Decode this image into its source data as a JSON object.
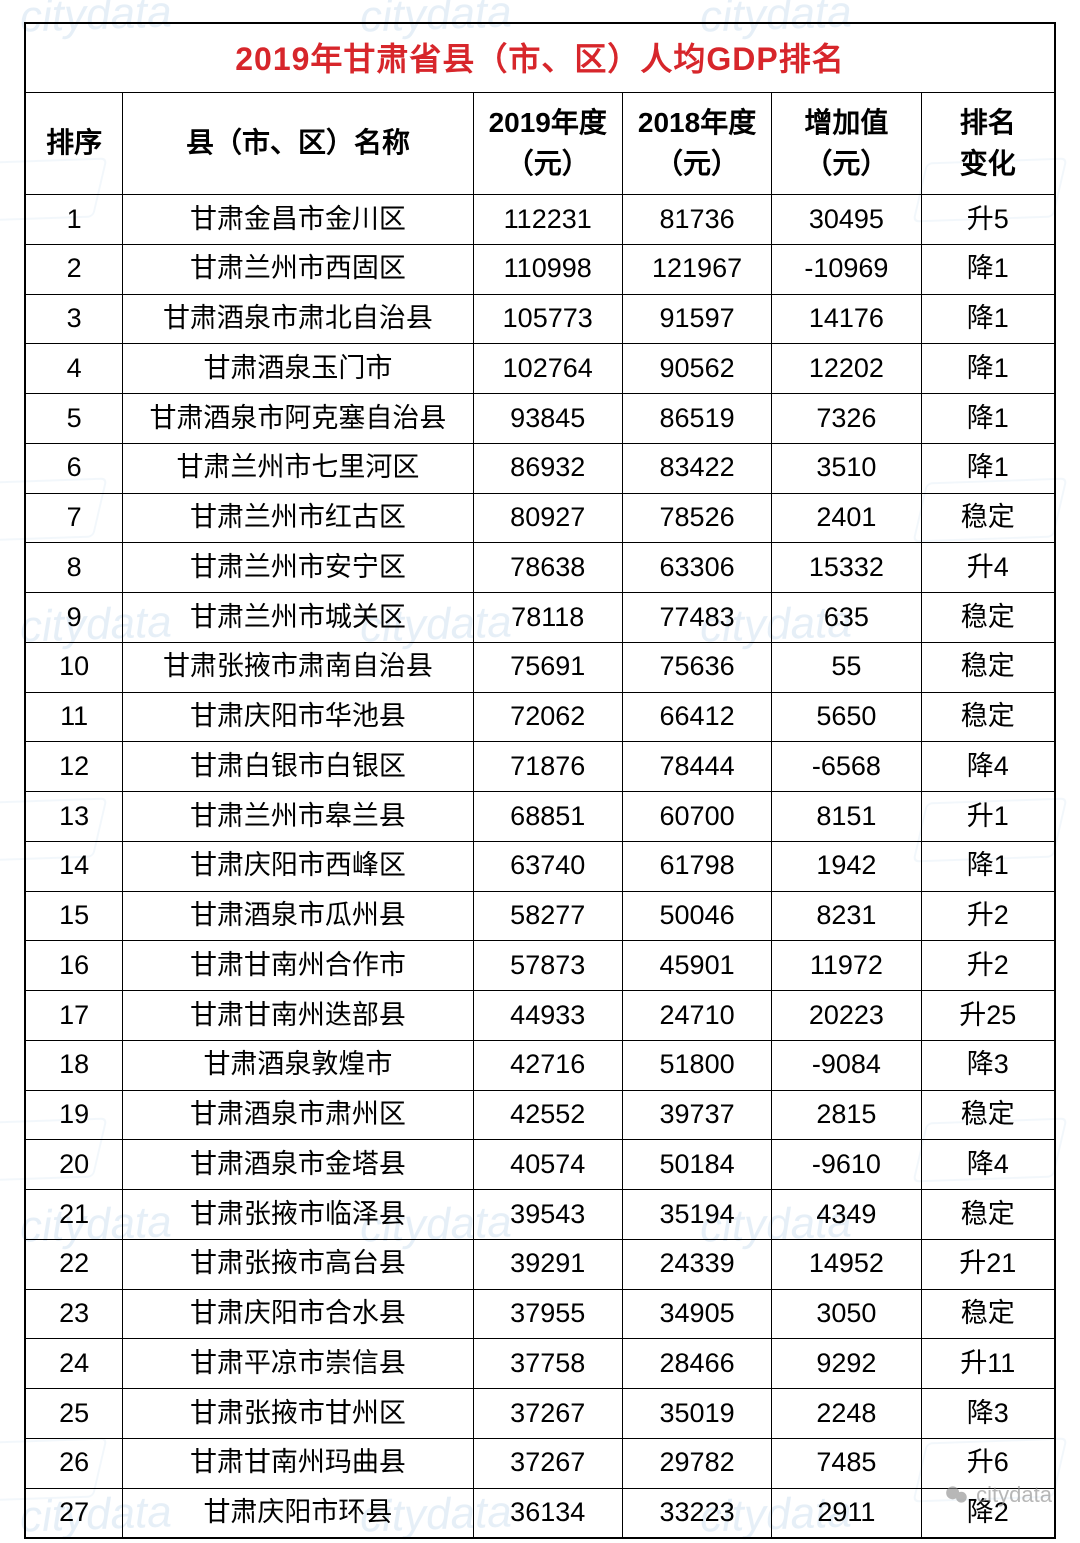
{
  "table": {
    "title": "2019年甘肃省县（市、区）人均GDP排名",
    "title_color": "#d7262b",
    "title_fontsize": 32,
    "border_color": "#000000",
    "background_color": "#ffffff",
    "header_fontsize": 28,
    "cell_fontsize": 27,
    "columns": [
      {
        "key": "rank",
        "label": "排序",
        "width_pct": 9.5,
        "align": "center"
      },
      {
        "key": "name",
        "label": "县（市、区）名称",
        "width_pct": 34,
        "align": "center"
      },
      {
        "key": "y2019",
        "label": "2019年度\n（元）",
        "width_pct": 14.5,
        "align": "center"
      },
      {
        "key": "y2018",
        "label": "2018年度\n（元）",
        "width_pct": 14.5,
        "align": "center"
      },
      {
        "key": "inc",
        "label": "增加值\n（元）",
        "width_pct": 14.5,
        "align": "center"
      },
      {
        "key": "change",
        "label": "排名\n变化",
        "width_pct": 13,
        "align": "center"
      }
    ],
    "rows": [
      {
        "rank": "1",
        "name": "甘肃金昌市金川区",
        "y2019": "112231",
        "y2018": "81736",
        "inc": "30495",
        "change": "升5"
      },
      {
        "rank": "2",
        "name": "甘肃兰州市西固区",
        "y2019": "110998",
        "y2018": "121967",
        "inc": "-10969",
        "change": "降1"
      },
      {
        "rank": "3",
        "name": "甘肃酒泉市肃北自治县",
        "y2019": "105773",
        "y2018": "91597",
        "inc": "14176",
        "change": "降1"
      },
      {
        "rank": "4",
        "name": "甘肃酒泉玉门市",
        "y2019": "102764",
        "y2018": "90562",
        "inc": "12202",
        "change": "降1"
      },
      {
        "rank": "5",
        "name": "甘肃酒泉市阿克塞自治县",
        "y2019": "93845",
        "y2018": "86519",
        "inc": "7326",
        "change": "降1"
      },
      {
        "rank": "6",
        "name": "甘肃兰州市七里河区",
        "y2019": "86932",
        "y2018": "83422",
        "inc": "3510",
        "change": "降1"
      },
      {
        "rank": "7",
        "name": "甘肃兰州市红古区",
        "y2019": "80927",
        "y2018": "78526",
        "inc": "2401",
        "change": "稳定"
      },
      {
        "rank": "8",
        "name": "甘肃兰州市安宁区",
        "y2019": "78638",
        "y2018": "63306",
        "inc": "15332",
        "change": "升4"
      },
      {
        "rank": "9",
        "name": "甘肃兰州市城关区",
        "y2019": "78118",
        "y2018": "77483",
        "inc": "635",
        "change": "稳定"
      },
      {
        "rank": "10",
        "name": "甘肃张掖市肃南自治县",
        "y2019": "75691",
        "y2018": "75636",
        "inc": "55",
        "change": "稳定"
      },
      {
        "rank": "11",
        "name": "甘肃庆阳市华池县",
        "y2019": "72062",
        "y2018": "66412",
        "inc": "5650",
        "change": "稳定"
      },
      {
        "rank": "12",
        "name": "甘肃白银市白银区",
        "y2019": "71876",
        "y2018": "78444",
        "inc": "-6568",
        "change": "降4"
      },
      {
        "rank": "13",
        "name": "甘肃兰州市皋兰县",
        "y2019": "68851",
        "y2018": "60700",
        "inc": "8151",
        "change": "升1"
      },
      {
        "rank": "14",
        "name": "甘肃庆阳市西峰区",
        "y2019": "63740",
        "y2018": "61798",
        "inc": "1942",
        "change": "降1"
      },
      {
        "rank": "15",
        "name": "甘肃酒泉市瓜州县",
        "y2019": "58277",
        "y2018": "50046",
        "inc": "8231",
        "change": "升2"
      },
      {
        "rank": "16",
        "name": "甘肃甘南州合作市",
        "y2019": "57873",
        "y2018": "45901",
        "inc": "11972",
        "change": "升2"
      },
      {
        "rank": "17",
        "name": "甘肃甘南州迭部县",
        "y2019": "44933",
        "y2018": "24710",
        "inc": "20223",
        "change": "升25"
      },
      {
        "rank": "18",
        "name": "甘肃酒泉敦煌市",
        "y2019": "42716",
        "y2018": "51800",
        "inc": "-9084",
        "change": "降3"
      },
      {
        "rank": "19",
        "name": "甘肃酒泉市肃州区",
        "y2019": "42552",
        "y2018": "39737",
        "inc": "2815",
        "change": "稳定"
      },
      {
        "rank": "20",
        "name": "甘肃酒泉市金塔县",
        "y2019": "40574",
        "y2018": "50184",
        "inc": "-9610",
        "change": "降4"
      },
      {
        "rank": "21",
        "name": "甘肃张掖市临泽县",
        "y2019": "39543",
        "y2018": "35194",
        "inc": "4349",
        "change": "稳定"
      },
      {
        "rank": "22",
        "name": "甘肃张掖市高台县",
        "y2019": "39291",
        "y2018": "24339",
        "inc": "14952",
        "change": "升21"
      },
      {
        "rank": "23",
        "name": "甘肃庆阳市合水县",
        "y2019": "37955",
        "y2018": "34905",
        "inc": "3050",
        "change": "稳定"
      },
      {
        "rank": "24",
        "name": "甘肃平凉市崇信县",
        "y2019": "37758",
        "y2018": "28466",
        "inc": "9292",
        "change": "升11"
      },
      {
        "rank": "25",
        "name": "甘肃张掖市甘州区",
        "y2019": "37267",
        "y2018": "35019",
        "inc": "2248",
        "change": "降3"
      },
      {
        "rank": "26",
        "name": "甘肃甘南州玛曲县",
        "y2019": "37267",
        "y2018": "29782",
        "inc": "7485",
        "change": "升6"
      },
      {
        "rank": "27",
        "name": "甘肃庆阳市环县",
        "y2019": "36134",
        "y2018": "33223",
        "inc": "2911",
        "change": "降2"
      }
    ]
  },
  "watermark": {
    "text": "citydata",
    "color": "#3b82c4",
    "opacity": 0.12
  },
  "source": {
    "label": "citydata"
  }
}
